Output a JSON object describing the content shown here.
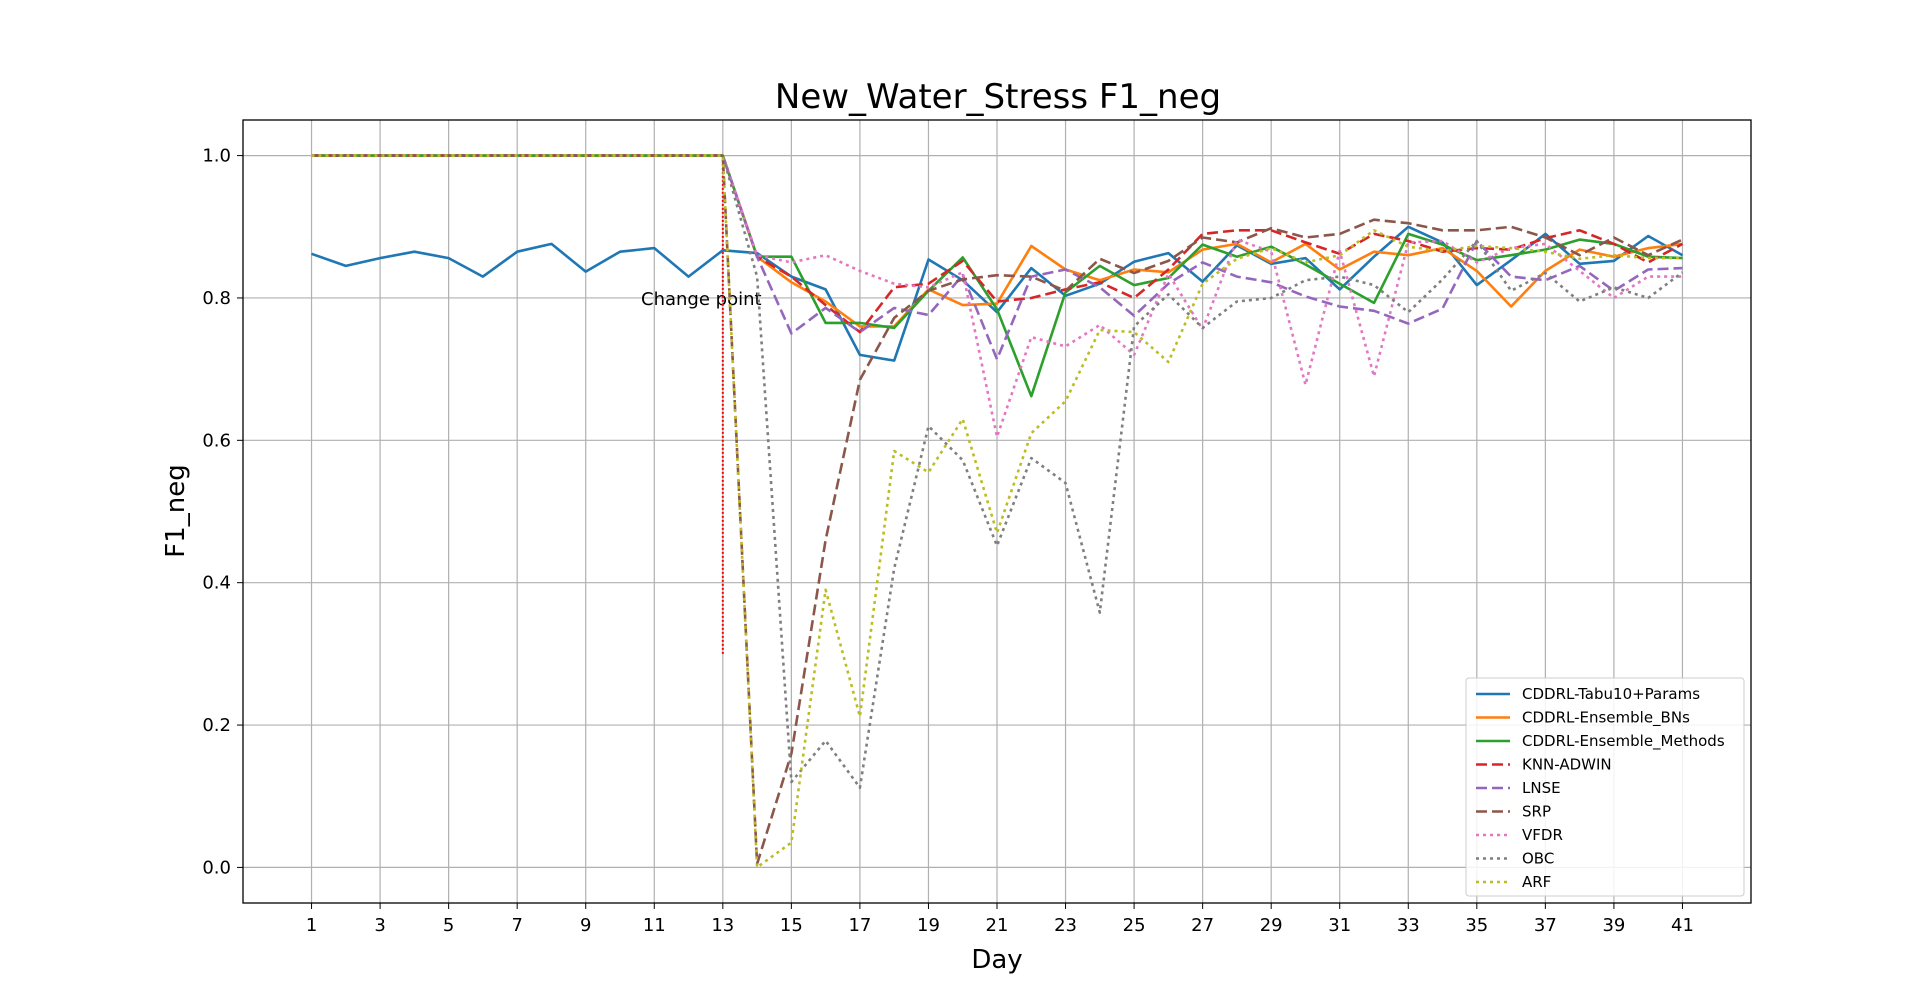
{
  "chart_data": {
    "type": "line",
    "title": "New_Water_Stress F1_neg",
    "xlabel": "Day",
    "ylabel": "F1_neg",
    "xlim": [
      -1,
      43
    ],
    "ylim": [
      -0.05,
      1.05
    ],
    "xticks": [
      1,
      3,
      5,
      7,
      9,
      11,
      13,
      15,
      17,
      19,
      21,
      23,
      25,
      27,
      29,
      31,
      33,
      35,
      37,
      39,
      41
    ],
    "yticks": [
      0.0,
      0.2,
      0.4,
      0.6,
      0.8,
      1.0
    ],
    "grid": true,
    "legend_position": "lower right",
    "annotation": {
      "text": "Change point",
      "x": 13,
      "y_from": 0.3,
      "y_to": 1.0,
      "color": "#ff0000"
    },
    "x": [
      1,
      2,
      3,
      4,
      5,
      6,
      7,
      8,
      9,
      10,
      11,
      12,
      13,
      14,
      15,
      16,
      17,
      18,
      19,
      20,
      21,
      22,
      23,
      24,
      25,
      26,
      27,
      28,
      29,
      30,
      31,
      32,
      33,
      34,
      35,
      36,
      37,
      38,
      39,
      40,
      41
    ],
    "series": [
      {
        "name": "CDDRL-Tabu10+Params",
        "color": "#1f77b4",
        "dash": "solid",
        "values": [
          0.862,
          0.845,
          0.856,
          0.865,
          0.856,
          0.83,
          0.865,
          0.876,
          0.837,
          0.865,
          0.87,
          0.83,
          0.867,
          0.863,
          0.83,
          0.812,
          0.72,
          0.712,
          0.854,
          0.825,
          0.78,
          0.842,
          0.803,
          0.82,
          0.851,
          0.863,
          0.823,
          0.874,
          0.848,
          0.856,
          0.812,
          0.858,
          0.9,
          0.878,
          0.818,
          0.853,
          0.89,
          0.848,
          0.852,
          0.887,
          0.86
        ]
      },
      {
        "name": "CDDRL-Ensemble_BNs",
        "color": "#ff7f0e",
        "dash": "solid",
        "values": [
          1.0,
          1.0,
          1.0,
          1.0,
          1.0,
          1.0,
          1.0,
          1.0,
          1.0,
          1.0,
          1.0,
          1.0,
          1.0,
          0.858,
          0.822,
          0.795,
          0.76,
          0.76,
          0.812,
          0.79,
          0.792,
          0.873,
          0.84,
          0.825,
          0.84,
          0.836,
          0.868,
          0.876,
          0.85,
          0.876,
          0.84,
          0.865,
          0.86,
          0.87,
          0.838,
          0.788,
          0.838,
          0.868,
          0.858,
          0.87,
          0.876
        ]
      },
      {
        "name": "CDDRL-Ensemble_Methods",
        "color": "#2ca02c",
        "dash": "solid",
        "values": [
          1.0,
          1.0,
          1.0,
          1.0,
          1.0,
          1.0,
          1.0,
          1.0,
          1.0,
          1.0,
          1.0,
          1.0,
          1.0,
          0.858,
          0.858,
          0.765,
          0.765,
          0.758,
          0.81,
          0.857,
          0.784,
          0.662,
          0.808,
          0.845,
          0.818,
          0.828,
          0.875,
          0.858,
          0.872,
          0.847,
          0.82,
          0.793,
          0.89,
          0.875,
          0.853,
          0.86,
          0.868,
          0.882,
          0.876,
          0.858,
          0.856
        ]
      },
      {
        "name": "KNN-ADWIN",
        "color": "#d62728",
        "dash": "dashed",
        "values": [
          1.0,
          1.0,
          1.0,
          1.0,
          1.0,
          1.0,
          1.0,
          1.0,
          1.0,
          1.0,
          1.0,
          1.0,
          1.0,
          0.858,
          0.83,
          0.79,
          0.752,
          0.815,
          0.82,
          0.852,
          0.795,
          0.8,
          0.812,
          0.822,
          0.8,
          0.84,
          0.89,
          0.895,
          0.895,
          0.878,
          0.862,
          0.89,
          0.88,
          0.865,
          0.87,
          0.868,
          0.884,
          0.895,
          0.876,
          0.85,
          0.876
        ]
      },
      {
        "name": "LNSE",
        "color": "#9467bd",
        "dash": "dashed",
        "values": [
          1.0,
          1.0,
          1.0,
          1.0,
          1.0,
          1.0,
          1.0,
          1.0,
          1.0,
          1.0,
          1.0,
          1.0,
          1.0,
          0.858,
          0.75,
          0.786,
          0.752,
          0.786,
          0.776,
          0.832,
          0.714,
          0.83,
          0.84,
          0.815,
          0.775,
          0.82,
          0.85,
          0.83,
          0.822,
          0.802,
          0.788,
          0.782,
          0.764,
          0.785,
          0.88,
          0.83,
          0.825,
          0.845,
          0.81,
          0.84,
          0.842
        ]
      },
      {
        "name": "SRP",
        "color": "#8c564b",
        "dash": "dashed",
        "values": [
          1.0,
          1.0,
          1.0,
          1.0,
          1.0,
          1.0,
          1.0,
          1.0,
          1.0,
          1.0,
          1.0,
          1.0,
          1.0,
          0.005,
          0.16,
          0.46,
          0.685,
          0.772,
          0.81,
          0.826,
          0.832,
          0.83,
          0.81,
          0.855,
          0.835,
          0.852,
          0.885,
          0.878,
          0.898,
          0.885,
          0.89,
          0.91,
          0.905,
          0.895,
          0.895,
          0.9,
          0.885,
          0.86,
          0.885,
          0.86,
          0.882
        ]
      },
      {
        "name": "VFDR",
        "color": "#e377c2",
        "dash": "dotted",
        "values": [
          1.0,
          1.0,
          1.0,
          1.0,
          1.0,
          1.0,
          1.0,
          1.0,
          1.0,
          1.0,
          1.0,
          1.0,
          1.0,
          0.86,
          0.85,
          0.86,
          0.838,
          0.82,
          0.815,
          0.836,
          0.605,
          0.745,
          0.732,
          0.762,
          0.72,
          0.834,
          0.756,
          0.882,
          0.865,
          0.678,
          0.866,
          0.69,
          0.878,
          0.88,
          0.85,
          0.87,
          0.876,
          0.838,
          0.8,
          0.83,
          0.83
        ]
      },
      {
        "name": "OBC",
        "color": "#7f7f7f",
        "dash": "dotted",
        "values": [
          1.0,
          1.0,
          1.0,
          1.0,
          1.0,
          1.0,
          1.0,
          1.0,
          1.0,
          1.0,
          1.0,
          1.0,
          1.0,
          0.83,
          0.12,
          0.178,
          0.112,
          0.42,
          0.62,
          0.572,
          0.452,
          0.575,
          0.54,
          0.358,
          0.76,
          0.805,
          0.758,
          0.795,
          0.8,
          0.825,
          0.83,
          0.818,
          0.78,
          0.826,
          0.88,
          0.81,
          0.835,
          0.795,
          0.815,
          0.8,
          0.836
        ]
      },
      {
        "name": "ARF",
        "color": "#bcbd22",
        "dash": "dotted",
        "values": [
          1.0,
          1.0,
          1.0,
          1.0,
          1.0,
          1.0,
          1.0,
          1.0,
          1.0,
          1.0,
          1.0,
          1.0,
          1.0,
          0.0,
          0.035,
          0.39,
          0.212,
          0.585,
          0.555,
          0.63,
          0.47,
          0.61,
          0.655,
          0.755,
          0.752,
          0.71,
          0.82,
          0.855,
          0.87,
          0.85,
          0.86,
          0.895,
          0.872,
          0.866,
          0.873,
          0.87,
          0.865,
          0.855,
          0.86,
          0.856,
          0.856
        ]
      }
    ]
  }
}
